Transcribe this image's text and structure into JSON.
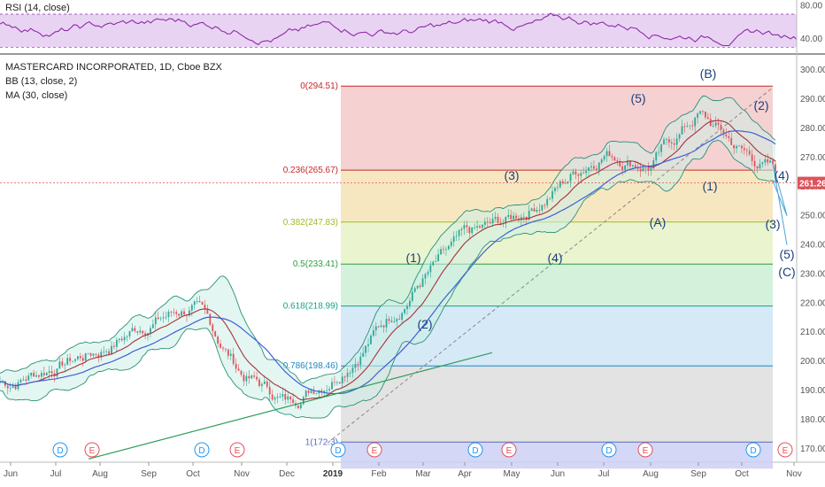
{
  "rsi_panel": {
    "legend": "RSI (14, close)",
    "y_ticks": [
      "80.00",
      "40.00"
    ],
    "upper_band": 70,
    "lower_band": 30,
    "ylim": [
      25,
      85
    ]
  },
  "main_panel": {
    "legend_title": "MASTERCARD INCORPORATED, 1D, Cboe BZX",
    "legend_bb": "BB (13, close, 2)",
    "legend_ma": "MA (30, close)",
    "current_price_label": "261.26",
    "current_price": 261.26,
    "y_ticks": [
      "300.00",
      "290.00",
      "280.00",
      "270.00",
      "260.00",
      "250.00",
      "240.00",
      "230.00",
      "220.00",
      "210.00",
      "200.00",
      "190.00",
      "180.00",
      "170.00"
    ],
    "ylim": [
      166,
      304
    ]
  },
  "x_axis": {
    "labels": [
      "Jun",
      "Jul",
      "Aug",
      "Sep",
      "Oct",
      "Nov",
      "Dec",
      "2019",
      "Feb",
      "Mar",
      "Apr",
      "May",
      "Jun",
      "Jul",
      "Aug",
      "Sep",
      "Oct",
      "Nov"
    ]
  },
  "fibonacci": [
    {
      "label": "0(294.51)",
      "price": 294.51,
      "color": "#c62828",
      "fill": "#f3c9c9"
    },
    {
      "label": "0.236(265.67)",
      "price": 265.67,
      "color": "#c62828",
      "fill": "#f6e3b5"
    },
    {
      "label": "0.382(247.83)",
      "price": 247.83,
      "color": "#9bbd2a",
      "fill": "#e6f2c6"
    },
    {
      "label": "0.5(233.41)",
      "price": 233.41,
      "color": "#2e9e3e",
      "fill": "#cdeed6"
    },
    {
      "label": "0.618(218.99)",
      "price": 218.99,
      "color": "#17a08a",
      "fill": "#cfe5f5"
    },
    {
      "label": "0.786(198.46)",
      "price": 198.46,
      "color": "#1e88c8",
      "fill": "#dedede"
    },
    {
      "label": "1(172.3)",
      "price": 172.3,
      "color": "#5c6bc0",
      "fill": "#cdd0f3"
    }
  ],
  "wave_labels": [
    "(1)",
    "(2)",
    "(3)",
    "(4)",
    "(5)",
    "(A)",
    "(B)",
    "(1)",
    "(2)",
    "(3)",
    "(4)",
    "(5)",
    "(C)"
  ],
  "event_markers": [
    "D",
    "E",
    "D",
    "E",
    "D",
    "E",
    "D",
    "E",
    "D",
    "E",
    "D",
    "E"
  ],
  "colors": {
    "up_candle": "#2ea79a",
    "down_candle": "#e0525b",
    "bb_line": "#2a8f78",
    "bb_fill": "#cdeee6",
    "ma_line": "#3f5fd6",
    "mid_line": "#a8323c",
    "rsi_line": "#8e2ba8",
    "rsi_fill": "#e9d3f3",
    "price_tag": "#e0525b",
    "trend_line": "#2e9e5a",
    "dividend": "#2196f3",
    "earnings": "#e0525b"
  },
  "chart_data": {
    "type": "candlestick",
    "title": "MASTERCARD INCORPORATED, 1D, Cboe BZX",
    "x_dates": [
      "2018-06",
      "2018-07",
      "2018-08",
      "2018-09",
      "2018-10",
      "2018-11",
      "2018-12",
      "2019-01",
      "2019-02",
      "2019-03",
      "2019-04",
      "2019-05",
      "2019-06",
      "2019-07",
      "2019-08",
      "2019-09",
      "2019-10",
      "2019-11"
    ],
    "approx_close_by_month": [
      193,
      199,
      204,
      214,
      219,
      196,
      186,
      196,
      212,
      229,
      241,
      248,
      260,
      273,
      268,
      285,
      272,
      261
    ],
    "ylim": [
      166,
      304
    ],
    "indicators": [
      "BB (13, close, 2)",
      "MA (30, close)",
      "RSI (14, close)"
    ]
  }
}
